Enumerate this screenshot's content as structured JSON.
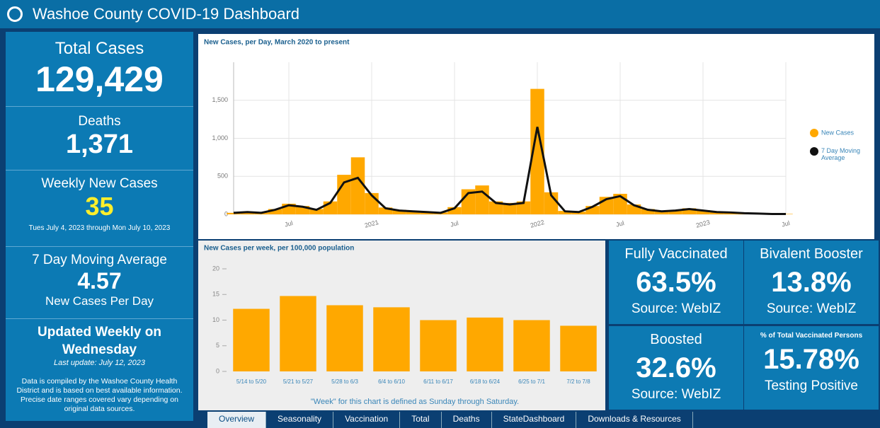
{
  "header": {
    "title": "Washoe County COVID-19 Dashboard"
  },
  "stats": {
    "total_cases": {
      "label": "Total Cases",
      "value": "129,429"
    },
    "deaths": {
      "label": "Deaths",
      "value": "1,371"
    },
    "weekly_new_cases": {
      "label": "Weekly New Cases",
      "value": "35",
      "range": "Tues July 4, 2023 through Mon July 10, 2023"
    },
    "moving_average": {
      "label": "7 Day Moving Average",
      "value": "4.57",
      "unit": "New Cases Per Day"
    },
    "updated": {
      "label": "Updated Weekly on Wednesday",
      "last_update": "Last update: July 12, 2023",
      "note": "Data is compiled by the Washoe County Health District and is based on best available information.  Precise date ranges covered vary depending on original data sources."
    }
  },
  "line_chart": {
    "type": "line",
    "title": "New Cases, per Day, March 2020 to present",
    "categories": [
      null,
      null,
      null,
      null,
      "Jul",
      null,
      null,
      null,
      null,
      null,
      "2021",
      null,
      null,
      null,
      null,
      null,
      "Jul",
      null,
      null,
      null,
      null,
      null,
      "2022",
      null,
      null,
      null,
      null,
      null,
      "Jul",
      null,
      null,
      null,
      null,
      null,
      "2023",
      null,
      null,
      null,
      null,
      null,
      "Jul"
    ],
    "series": [
      {
        "name": "New Cases",
        "color": "#ffa800",
        "values": [
          20,
          35,
          25,
          70,
          140,
          110,
          70,
          170,
          520,
          750,
          280,
          90,
          60,
          45,
          35,
          25,
          95,
          330,
          380,
          170,
          150,
          170,
          1650,
          290,
          45,
          35,
          110,
          230,
          270,
          130,
          70,
          45,
          55,
          80,
          55,
          35,
          28,
          18,
          12,
          6,
          5
        ]
      },
      {
        "name": "7 Day Moving Average",
        "color": "#111111",
        "values": [
          20,
          30,
          20,
          60,
          120,
          100,
          60,
          150,
          420,
          480,
          250,
          80,
          50,
          40,
          30,
          20,
          80,
          280,
          300,
          150,
          130,
          150,
          1150,
          250,
          40,
          30,
          100,
          200,
          240,
          120,
          60,
          40,
          50,
          70,
          50,
          30,
          25,
          15,
          10,
          5,
          5
        ]
      }
    ],
    "ylim": [
      0,
      2000
    ],
    "yticks": [
      0,
      500,
      {
        "value": 1000,
        "label": "1,000"
      },
      {
        "value": 1500,
        "label": "1,500"
      }
    ],
    "grid": true
  },
  "bar_chart": {
    "type": "bar",
    "title": "New Cases per week, per 100,000 population",
    "categories": [
      "5/14 to 5/20",
      "5/21 to 5/27",
      "5/28 to 6/3",
      "6/4 to 6/10",
      "6/11 to 6/17",
      "6/18 to 6/24",
      "6/25 to 7/1",
      "7/2 to 7/8"
    ],
    "values": [
      12.2,
      14.7,
      12.9,
      12.5,
      10,
      10.5,
      10,
      8.9
    ],
    "color": "#ffa800",
    "ylim": [
      0,
      20
    ],
    "yticks": [
      0,
      5,
      10,
      15,
      20
    ],
    "grid": true,
    "note": "\"Week\" for this chart is defined as Sunday through Saturday."
  },
  "tiles": [
    {
      "title": "Fully Vaccinated",
      "value": "63.5%",
      "caption": "Source: WebIZ"
    },
    {
      "title": "Bivalent Booster",
      "value": "13.8%",
      "caption": "Source: WebIZ"
    },
    {
      "title": "Boosted",
      "value": "32.6%",
      "caption": "Source: WebIZ"
    },
    {
      "title": "% of Total Vaccinated Persons",
      "value": "15.78%",
      "caption": "Testing Positive"
    }
  ],
  "tabs": [
    "Overview",
    "Seasonality",
    "Vaccination",
    "Total",
    "Deaths",
    "StateDashboard",
    "Downloads & Resources"
  ]
}
